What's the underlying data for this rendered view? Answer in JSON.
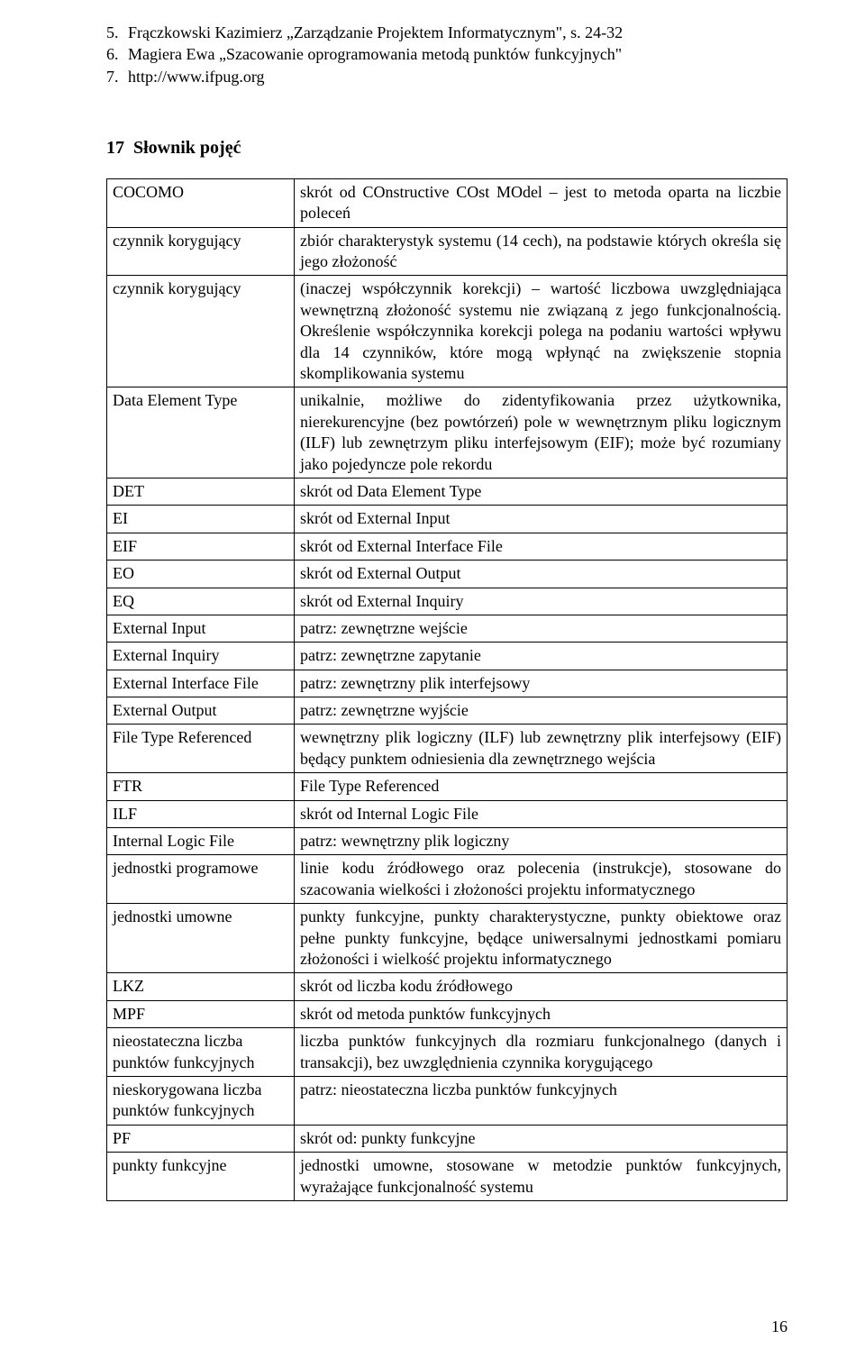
{
  "bibliography": [
    {
      "num": "5.",
      "text": "Frączkowski Kazimierz „Zarządzanie Projektem Informatycznym\", s. 24-32"
    },
    {
      "num": "6.",
      "text": "Magiera Ewa „Szacowanie oprogramowania metodą punktów funkcyjnych\""
    },
    {
      "num": "7.",
      "text": "http://www.ifpug.org"
    }
  ],
  "section": {
    "number": "17",
    "title": "Słownik pojęć"
  },
  "glossary": [
    {
      "term": "COCOMO",
      "def": "skrót od COnstructive COst MOdel – jest to metoda oparta na liczbie poleceń"
    },
    {
      "term": "czynnik korygujący",
      "def": "zbiór charakterystyk systemu (14 cech), na podstawie których określa się jego złożoność"
    },
    {
      "term": "czynnik korygujący",
      "def": "(inaczej współczynnik korekcji) – wartość liczbowa uwzględniająca wewnętrzną złożoność systemu nie związaną z jego funkcjonalnością. Określenie współczynnika korekcji polega na podaniu wartości wpływu dla 14 czynników, które mogą wpłynąć na zwiększenie stopnia skomplikowania systemu"
    },
    {
      "term": "Data Element Type",
      "def": "unikalnie, możliwe do zidentyfikowania przez użytkownika, nierekurencyjne (bez powtórzeń) pole w wewnętrznym pliku logicznym (ILF) lub zewnętrzym pliku interfejsowym (EIF); może być rozumiany jako pojedyncze pole rekordu"
    },
    {
      "term": "DET",
      "def": "skrót od Data Element Type"
    },
    {
      "term": "EI",
      "def": "skrót od External Input"
    },
    {
      "term": "EIF",
      "def": "skrót od External Interface File"
    },
    {
      "term": "EO",
      "def": "skrót od External Output"
    },
    {
      "term": "EQ",
      "def": "skrót od External Inquiry"
    },
    {
      "term": "External Input",
      "def": "patrz: zewnętrzne wejście"
    },
    {
      "term": "External Inquiry",
      "def": "patrz: zewnętrzne zapytanie"
    },
    {
      "term": "External Interface File",
      "def": "patrz: zewnętrzny plik interfejsowy"
    },
    {
      "term": "External Output",
      "def": "patrz: zewnętrzne wyjście"
    },
    {
      "term": "File Type Referenced",
      "def": "wewnętrzny plik logiczny (ILF) lub zewnętrzny plik interfejsowy (EIF) będący punktem odniesienia dla zewnętrznego wejścia"
    },
    {
      "term": "FTR",
      "def": "File Type Referenced"
    },
    {
      "term": "ILF",
      "def": "skrót od Internal Logic File"
    },
    {
      "term": "Internal Logic File",
      "def": "patrz: wewnętrzny plik logiczny"
    },
    {
      "term": "jednostki programowe",
      "def": "linie kodu źródłowego oraz polecenia (instrukcje), stosowane do szacowania wielkości i złożoności projektu informatycznego"
    },
    {
      "term": "jednostki umowne",
      "def": "punkty funkcyjne, punkty charakterystyczne, punkty obiektowe oraz pełne punkty funkcyjne, będące uniwersalnymi jednostkami pomiaru złożoności i wielkość projektu informatycznego"
    },
    {
      "term": "LKZ",
      "def": "skrót od liczba kodu źródłowego"
    },
    {
      "term": "MPF",
      "def": "skrót od metoda punktów funkcyjnych"
    },
    {
      "term": "nieostateczna liczba punktów funkcyjnych",
      "def": "liczba punktów funkcyjnych dla rozmiaru funkcjonalnego (danych i transakcji), bez uwzględnienia czynnika korygującego"
    },
    {
      "term": "nieskorygowana liczba punktów funkcyjnych",
      "def": "patrz: nieostateczna liczba punktów funkcyjnych"
    },
    {
      "term": "PF",
      "def": "skrót od: punkty funkcyjne"
    },
    {
      "term": "punkty funkcyjne",
      "def": "jednostki umowne, stosowane w metodzie punktów funkcyjnych, wyrażające funkcjonalność systemu"
    }
  ],
  "page_number": "16"
}
